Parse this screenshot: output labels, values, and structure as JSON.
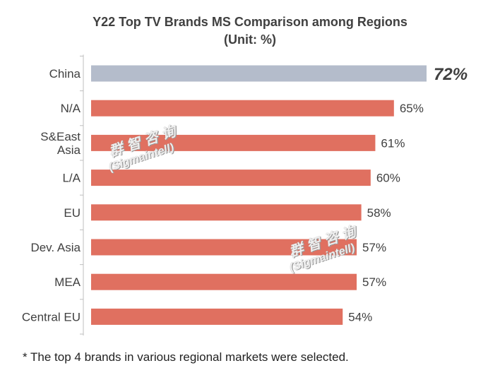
{
  "title_line1": "Y22 Top TV Brands MS Comparison among Regions",
  "title_line2": "(Unit: %)",
  "footnote": "* The top 4 brands in various regional markets were selected.",
  "watermark": {
    "cn": "群智咨询",
    "en": "(Sigmaintell)"
  },
  "colors": {
    "highlight": "#b4bccb",
    "bar": "#e07060",
    "text": "#404040"
  },
  "chart_data": {
    "type": "bar",
    "orientation": "horizontal",
    "title": "Y22 Top TV Brands MS Comparison among Regions",
    "subtitle": "(Unit: %)",
    "categories": [
      "China",
      "N/A",
      "S&East\nAsia",
      "L/A",
      "EU",
      "Dev. Asia",
      "MEA",
      "Central EU"
    ],
    "values": [
      72,
      65,
      61,
      60,
      58,
      57,
      57,
      54
    ],
    "value_labels": [
      "72%",
      "65%",
      "61%",
      "60%",
      "58%",
      "57%",
      "57%",
      "54%"
    ],
    "highlight_index": 0,
    "xlim": [
      0,
      72
    ],
    "grid": false
  }
}
